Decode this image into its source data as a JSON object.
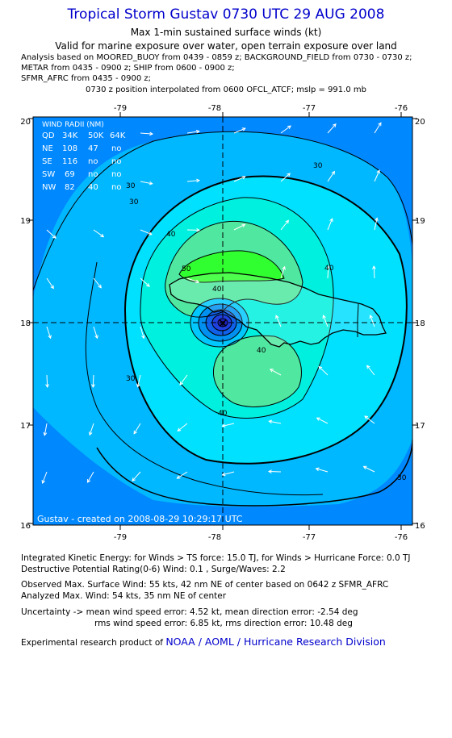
{
  "title": "Tropical Storm Gustav 0730 UTC 29 AUG 2008",
  "subtitle1": "Max 1-min sustained surface winds (kt)",
  "subtitle2": "Valid for marine exposure over water, open terrain exposure over land",
  "analysis_lines": [
    "Analysis based on  MOORED_BUOY from 0439 - 0859 z;  BACKGROUND_FIELD from 0730 - 0730 z;",
    "METAR from 0435 - 0900 z;  SHIP from 0600 - 0900 z;",
    "SFMR_AFRC from 0435 - 0900 z;"
  ],
  "position_line": "0730 z position interpolated from 0600 OFCL_ATCF; mslp = 991.0 mb",
  "map": {
    "lon_ticks": [
      "-79",
      "-78",
      "-77",
      "-76"
    ],
    "lat_ticks": [
      "20",
      "19",
      "18",
      "17",
      "16"
    ],
    "contour_labels": [
      "30",
      "30",
      "30",
      "30",
      "30",
      "40",
      "40",
      "40",
      "40",
      "50",
      "40"
    ],
    "credit": "Gustav  -  created on 2008-08-29  10:29:17 UTC",
    "wind_radii": {
      "title": "WIND RADII (NM)",
      "header": [
        "QD",
        "34K",
        "50K",
        "64K"
      ],
      "rows": [
        [
          "NE",
          "108",
          "47",
          "no"
        ],
        [
          "SE",
          "116",
          "no",
          "no"
        ],
        [
          "SW",
          "69",
          "no",
          "no"
        ],
        [
          "NW",
          "82",
          "40",
          "no"
        ]
      ]
    },
    "colors": {
      "background": "#0088ff",
      "band_30": "#00b8ff",
      "band_35": "#00e0ff",
      "band_40": "#00f0e0",
      "band_45": "#50e8a0",
      "band_50": "#30ff30",
      "core": "#1f3fdf",
      "land": "#ffffff"
    }
  },
  "footer": {
    "ike": "Integrated Kinetic Energy:  for Winds > TS force: 15.0 TJ,  for Winds > Hurricane Force: 0.0 TJ",
    "dpr": "Destructive Potential Rating(0-6)   Wind: 0.1 , Surge/Waves: 2.2",
    "observed": "Observed Max. Surface Wind: 55 kts, 42 nm NE of center based on 0642 z SFMR_AFRC",
    "analyzed": "Analyzed Max. Wind: 54 kts, 35 nm NE of center",
    "uncertainty1": "Uncertainty -> mean wind speed error: 4.52 kt,   mean direction error:  -2.54 deg",
    "uncertainty2": "rms wind speed error: 6.85 kt,   rms direction error: 10.48 deg",
    "experimental": "Experimental research product of",
    "org": "NOAA / AOML / Hurricane Research Division"
  }
}
